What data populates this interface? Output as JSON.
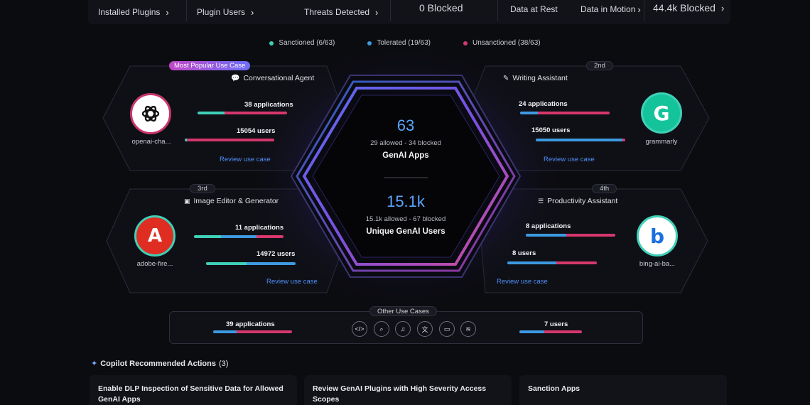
{
  "top_stats": [
    {
      "label": "Installed Plugins"
    },
    {
      "label": "Plugin Users"
    },
    {
      "label": "Threats Detected"
    },
    {
      "label": "0  Blocked"
    },
    {
      "label": "Data at Rest"
    },
    {
      "label": "Data in Motion"
    },
    {
      "label": "44.4k  Blocked"
    }
  ],
  "legend": [
    {
      "label": "Sanctioned (6/63)",
      "color": "#3fd0b8"
    },
    {
      "label": "Tolerated (19/63)",
      "color": "#3d9ae0"
    },
    {
      "label": "Unsanctioned (38/63)",
      "color": "#d6386d"
    }
  ],
  "center": {
    "apps_count": "63",
    "apps_sub": "29 allowed - 34 blocked",
    "apps_label": "GenAI Apps",
    "users_count": "15.1k",
    "users_sub": "15.1k allowed - 67 blocked",
    "users_label": "Unique GenAI Users"
  },
  "use_cases": [
    {
      "badge": "Most Popular Use Case",
      "title": "Conversational Agent",
      "title_icon": "chat-icon",
      "applications": "38 applications",
      "users": "15054 users",
      "link": "Review use case",
      "app_name": "openai-cha...",
      "app_icon": "openai-logo-icon",
      "apps_split": [
        0.3,
        0.0,
        0.7
      ],
      "users_split": [
        0.02,
        0.0,
        0.98
      ]
    },
    {
      "badge": "2nd",
      "title": "Writing Assistant",
      "title_icon": "pen-icon",
      "applications": "24 applications",
      "users": "15050 users",
      "link": "Review use case",
      "app_name": "grammarly",
      "app_icon": "grammarly-logo-icon",
      "apps_split": [
        0.0,
        0.2,
        0.8
      ],
      "users_split": [
        0.0,
        0.97,
        0.03
      ]
    },
    {
      "badge": "3rd",
      "title": "Image Editor & Generator",
      "title_icon": "image-icon",
      "applications": "11 applications",
      "users": "14972 users",
      "link": "Review use case",
      "app_name": "adobe-fire...",
      "app_icon": "adobe-firefly-logo-icon",
      "apps_split": [
        0.3,
        0.4,
        0.3
      ],
      "users_split": [
        0.45,
        0.55,
        0.0
      ]
    },
    {
      "badge": "4th",
      "title": "Productivity Assistant",
      "title_icon": "list-icon",
      "applications": "8 applications",
      "users": "8 users",
      "link": "Review use case",
      "app_name": "bing-ai-ba...",
      "app_icon": "bing-logo-icon",
      "apps_split": [
        0.0,
        0.45,
        0.55
      ],
      "users_split": [
        0.0,
        0.55,
        0.45
      ]
    }
  ],
  "other": {
    "label": "Other Use Cases",
    "applications": "39 applications",
    "users": "7 users",
    "apps_split": [
      0.0,
      0.3,
      0.7
    ],
    "users_split": [
      0.0,
      0.4,
      0.6
    ],
    "icons": [
      "code-icon",
      "search-icon",
      "music-icon",
      "translate-icon",
      "video-icon",
      "database-icon"
    ]
  },
  "copilot": {
    "title": "Copilot Recommended Actions",
    "count": "(3)",
    "cards": [
      {
        "title": "Enable DLP Inspection of Sensitive Data for Allowed GenAI Apps"
      },
      {
        "title": "Review GenAI Plugins with High Severity Access Scopes"
      },
      {
        "title": "Sanction Apps"
      }
    ]
  },
  "colors": {
    "sanctioned": "#3fd0b8",
    "tolerated": "#3d9ae0",
    "unsanctioned": "#d6386d"
  }
}
